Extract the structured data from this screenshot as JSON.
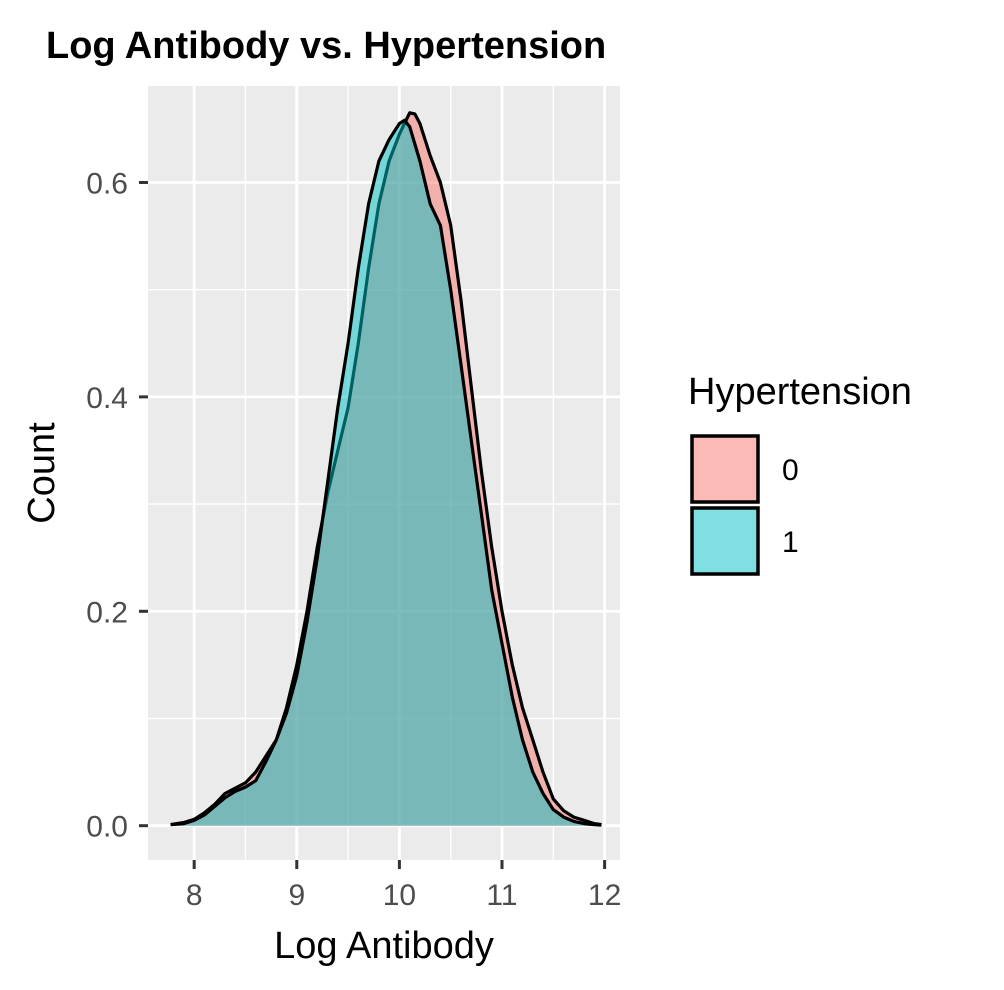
{
  "chart_data": {
    "type": "area",
    "subtype": "density",
    "title": "Log Antibody vs. Hypertension",
    "xlabel": "Log Antibody",
    "ylabel": "Count",
    "xlim": [
      7.55,
      12.15
    ],
    "ylim": [
      -0.032,
      0.69
    ],
    "x_ticks": [
      8,
      9,
      10,
      11,
      12
    ],
    "y_ticks": [
      0.0,
      0.2,
      0.4,
      0.6
    ],
    "y_tick_labels": [
      "0.0",
      "0.2",
      "0.4",
      "0.6"
    ],
    "grid": true,
    "legend": {
      "title": "Hypertension",
      "position": "right"
    },
    "series": [
      {
        "name": "0",
        "color": "#F8766D",
        "x": [
          7.77,
          7.9,
          8.0,
          8.1,
          8.2,
          8.3,
          8.4,
          8.5,
          8.6,
          8.7,
          8.8,
          8.9,
          9.0,
          9.1,
          9.2,
          9.3,
          9.4,
          9.5,
          9.6,
          9.7,
          9.8,
          9.9,
          10.0,
          10.05,
          10.1,
          10.15,
          10.2,
          10.3,
          10.4,
          10.5,
          10.6,
          10.7,
          10.8,
          10.9,
          11.0,
          11.1,
          11.2,
          11.3,
          11.4,
          11.5,
          11.6,
          11.7,
          11.8,
          11.9,
          11.97
        ],
        "y": [
          0.001,
          0.003,
          0.006,
          0.012,
          0.02,
          0.03,
          0.035,
          0.04,
          0.05,
          0.065,
          0.08,
          0.11,
          0.15,
          0.2,
          0.26,
          0.31,
          0.35,
          0.39,
          0.45,
          0.52,
          0.58,
          0.62,
          0.645,
          0.655,
          0.665,
          0.664,
          0.655,
          0.625,
          0.6,
          0.56,
          0.49,
          0.41,
          0.33,
          0.26,
          0.2,
          0.15,
          0.11,
          0.08,
          0.05,
          0.025,
          0.014,
          0.008,
          0.005,
          0.002,
          0.001
        ]
      },
      {
        "name": "1",
        "color": "#00BFC4",
        "x": [
          7.77,
          7.9,
          8.0,
          8.1,
          8.2,
          8.3,
          8.4,
          8.5,
          8.6,
          8.7,
          8.8,
          8.9,
          9.0,
          9.1,
          9.2,
          9.3,
          9.4,
          9.5,
          9.6,
          9.7,
          9.8,
          9.9,
          10.0,
          10.05,
          10.1,
          10.2,
          10.3,
          10.4,
          10.5,
          10.6,
          10.7,
          10.8,
          10.9,
          11.0,
          11.1,
          11.2,
          11.3,
          11.4,
          11.5,
          11.6,
          11.7,
          11.8,
          11.9,
          11.97
        ],
        "y": [
          0.001,
          0.002,
          0.005,
          0.01,
          0.018,
          0.026,
          0.032,
          0.036,
          0.042,
          0.06,
          0.08,
          0.105,
          0.14,
          0.19,
          0.25,
          0.32,
          0.39,
          0.45,
          0.52,
          0.58,
          0.62,
          0.64,
          0.655,
          0.658,
          0.652,
          0.62,
          0.58,
          0.56,
          0.5,
          0.43,
          0.36,
          0.29,
          0.22,
          0.17,
          0.12,
          0.08,
          0.05,
          0.03,
          0.015,
          0.008,
          0.004,
          0.002,
          0.001,
          0.0005
        ]
      }
    ]
  }
}
